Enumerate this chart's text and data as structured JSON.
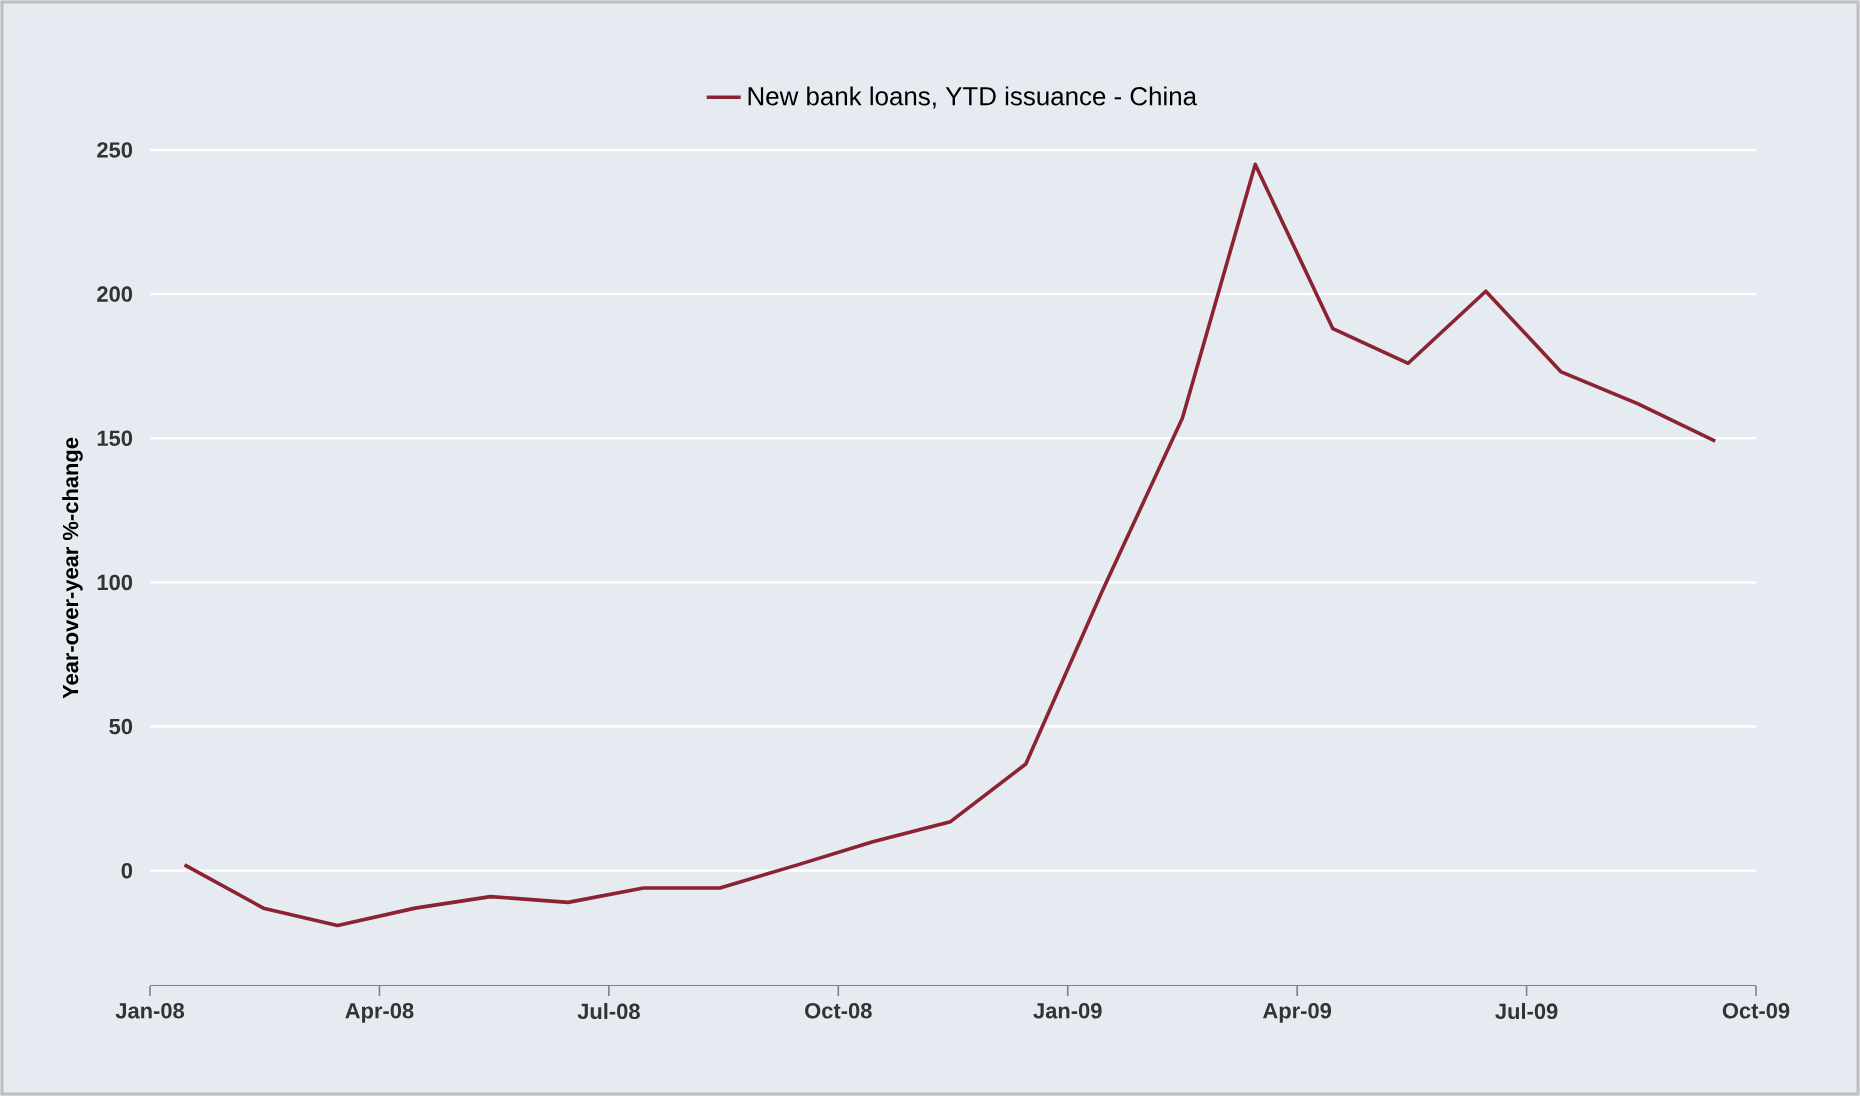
{
  "chart_data": {
    "type": "line",
    "ylabel": "Year-over-year %-change",
    "x": [
      "2008-01-15",
      "2008-02-15",
      "2008-03-15",
      "2008-04-15",
      "2008-05-15",
      "2008-06-15",
      "2008-07-15",
      "2008-08-15",
      "2008-09-15",
      "2008-10-15",
      "2008-11-15",
      "2008-12-15",
      "2009-01-15",
      "2009-02-15",
      "2009-03-15",
      "2009-04-15",
      "2009-05-15",
      "2009-06-15",
      "2009-07-15",
      "2009-08-15",
      "2009-09-15"
    ],
    "series": [
      {
        "name": "New bank loans, YTD issuance - China",
        "color": "#8b2332",
        "values": [
          2,
          -13,
          -19,
          -13,
          -9,
          -11,
          -6,
          -6,
          2,
          10,
          17,
          37,
          97,
          157,
          245,
          188,
          176,
          201,
          173,
          162,
          149
        ]
      }
    ],
    "xlim": [
      "2008-01",
      "2009-10"
    ],
    "xticks": [
      {
        "value": "2008-01",
        "label": "Jan-08"
      },
      {
        "value": "2008-04",
        "label": "Apr-08"
      },
      {
        "value": "2008-07",
        "label": "Jul-08"
      },
      {
        "value": "2008-10",
        "label": "Oct-08"
      },
      {
        "value": "2009-01",
        "label": "Jan-09"
      },
      {
        "value": "2009-04",
        "label": "Apr-09"
      },
      {
        "value": "2009-07",
        "label": "Jul-09"
      },
      {
        "value": "2009-10",
        "label": "Oct-09"
      }
    ],
    "ylim": [
      -40,
      250
    ],
    "yticks": [
      0,
      50,
      100,
      150,
      200,
      250
    ],
    "grid": "y",
    "legend": "top",
    "marker": "none",
    "line_style": "solid"
  }
}
